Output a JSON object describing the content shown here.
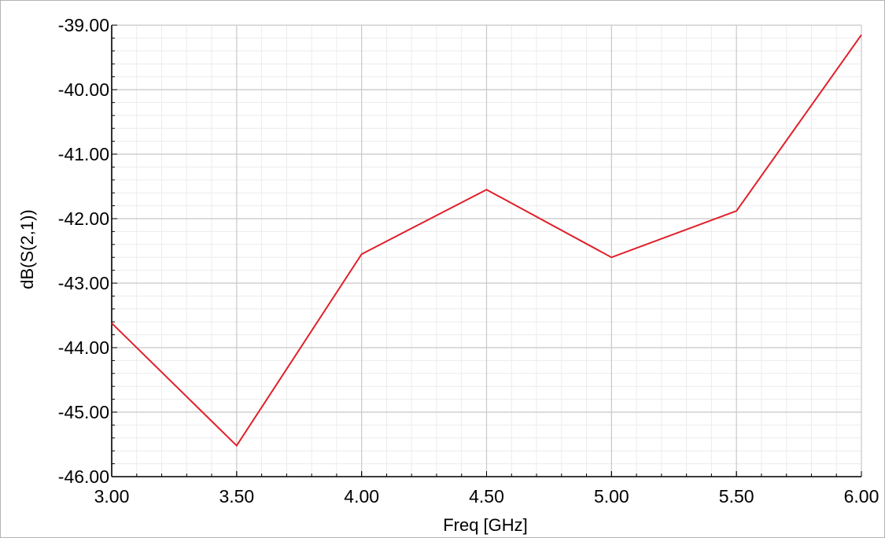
{
  "chart_data": {
    "type": "line",
    "title": "",
    "xlabel": "Freq [GHz]",
    "ylabel": "dB(S(2,1))",
    "xlim": [
      3.0,
      6.0
    ],
    "ylim": [
      -46.0,
      -39.0
    ],
    "xticks": [
      3.0,
      3.5,
      4.0,
      4.5,
      5.0,
      5.5,
      6.0
    ],
    "yticks": [
      -39.0,
      -40.0,
      -41.0,
      -42.0,
      -43.0,
      -44.0,
      -45.0,
      -46.0
    ],
    "x_tick_labels": [
      "3.00",
      "3.50",
      "4.00",
      "4.50",
      "5.00",
      "5.50",
      "6.00"
    ],
    "y_tick_labels": [
      "-39.00",
      "-40.00",
      "-41.00",
      "-42.00",
      "-43.00",
      "-44.00",
      "-45.00",
      "-46.00"
    ],
    "grid": true,
    "legend": "none",
    "series": [
      {
        "color": "#e0202a",
        "x": [
          3.0,
          3.5,
          4.0,
          4.5,
          5.0,
          5.5,
          6.0
        ],
        "y": [
          -43.62,
          -45.52,
          -42.55,
          -41.55,
          -42.6,
          -41.88,
          -39.15
        ]
      }
    ]
  },
  "colors": {
    "major_grid": "#c8c8c8",
    "minor_grid": "#ececec",
    "axis": "#000000",
    "outer_border": "#b4b4b4"
  }
}
